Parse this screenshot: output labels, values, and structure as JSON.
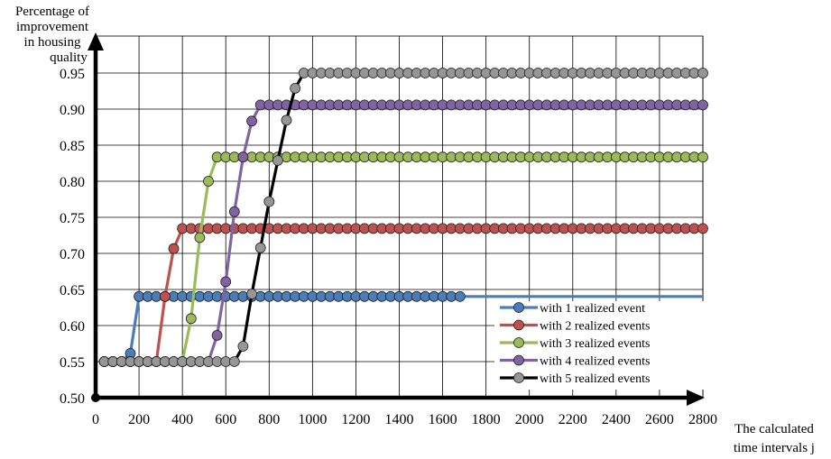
{
  "chart_data": {
    "type": "line",
    "title": "",
    "ylabel_lines": [
      "Percentage of",
      "improvement",
      "in housing",
      "quality"
    ],
    "xlabel_lines": [
      "The calculated",
      "time intervals j"
    ],
    "xlim": [
      0,
      2800
    ],
    "ylim": [
      0.5,
      0.95
    ],
    "x_ticks": [
      0,
      200,
      400,
      600,
      800,
      1000,
      1200,
      1400,
      1600,
      1800,
      2000,
      2200,
      2400,
      2600,
      2800
    ],
    "y_ticks": [
      0.5,
      0.55,
      0.6,
      0.65,
      0.7,
      0.75,
      0.8,
      0.85,
      0.9,
      0.95
    ],
    "y_tick_labels": [
      "0.50",
      "0.55",
      "0.60",
      "0.65",
      "0.70",
      "0.75",
      "0.80",
      "0.85",
      "0.90",
      "0.95"
    ],
    "x_tick_labels": [
      "0",
      "200",
      "400",
      "600",
      "800",
      "1000",
      "1200",
      "1400",
      "1600",
      "1800",
      "2000",
      "2200",
      "2400",
      "2600",
      "2800"
    ],
    "grid": true,
    "legend_position": "bottom-right",
    "series": [
      {
        "name": "with 1 realized event",
        "color": "#4a7ebb",
        "rise_x": [
          160,
          200
        ],
        "rise_y": [
          0.5614,
          0.6403
        ],
        "start_level": 0.55,
        "start_end_x": 120,
        "plateau": 0.6403,
        "plateau_from_x": 200,
        "plateau_markers_until": 1700
      },
      {
        "name": "with 2 realized events",
        "color": "#c0504d",
        "rise_x": [
          280,
          320,
          360,
          400
        ],
        "rise_y": [
          0.55,
          0.6403,
          0.7066,
          0.7345
        ],
        "start_level": 0.55,
        "start_end_x": 280,
        "plateau": 0.7345,
        "plateau_from_x": 400,
        "plateau_markers_until": 2800
      },
      {
        "name": "with 3 realized events",
        "color": "#9bbb59",
        "rise_x": [
          400,
          440,
          480,
          520,
          560
        ],
        "rise_y": [
          0.55,
          0.6096,
          0.7219,
          0.8,
          0.8335
        ],
        "start_level": 0.55,
        "start_end_x": 400,
        "plateau": 0.8335,
        "plateau_from_x": 560,
        "plateau_markers_until": 2800
      },
      {
        "name": "with 4 realized events",
        "color": "#8064a2",
        "rise_x": [
          520,
          560,
          600,
          640,
          680,
          720,
          760
        ],
        "rise_y": [
          0.55,
          0.5864,
          0.6607,
          0.7577,
          0.8335,
          0.8834,
          0.9057
        ],
        "start_level": 0.55,
        "start_end_x": 520,
        "plateau": 0.9057,
        "plateau_from_x": 760,
        "plateau_markers_until": 2800
      },
      {
        "name": "with 5 realized events",
        "color": "#000000",
        "marker_color": "#969696",
        "rise_x": [
          640,
          680,
          720,
          760,
          800,
          840,
          880,
          920,
          960
        ],
        "rise_y": [
          0.55,
          0.5713,
          0.6437,
          0.7077,
          0.7717,
          0.8288,
          0.8846,
          0.9289,
          0.95
        ],
        "start_level": 0.55,
        "start_end_x": 640,
        "plateau": 0.95,
        "plateau_from_x": 960,
        "plateau_markers_until": 2800
      }
    ],
    "marker_spacing_x": 40,
    "first_marker_x": 40
  }
}
